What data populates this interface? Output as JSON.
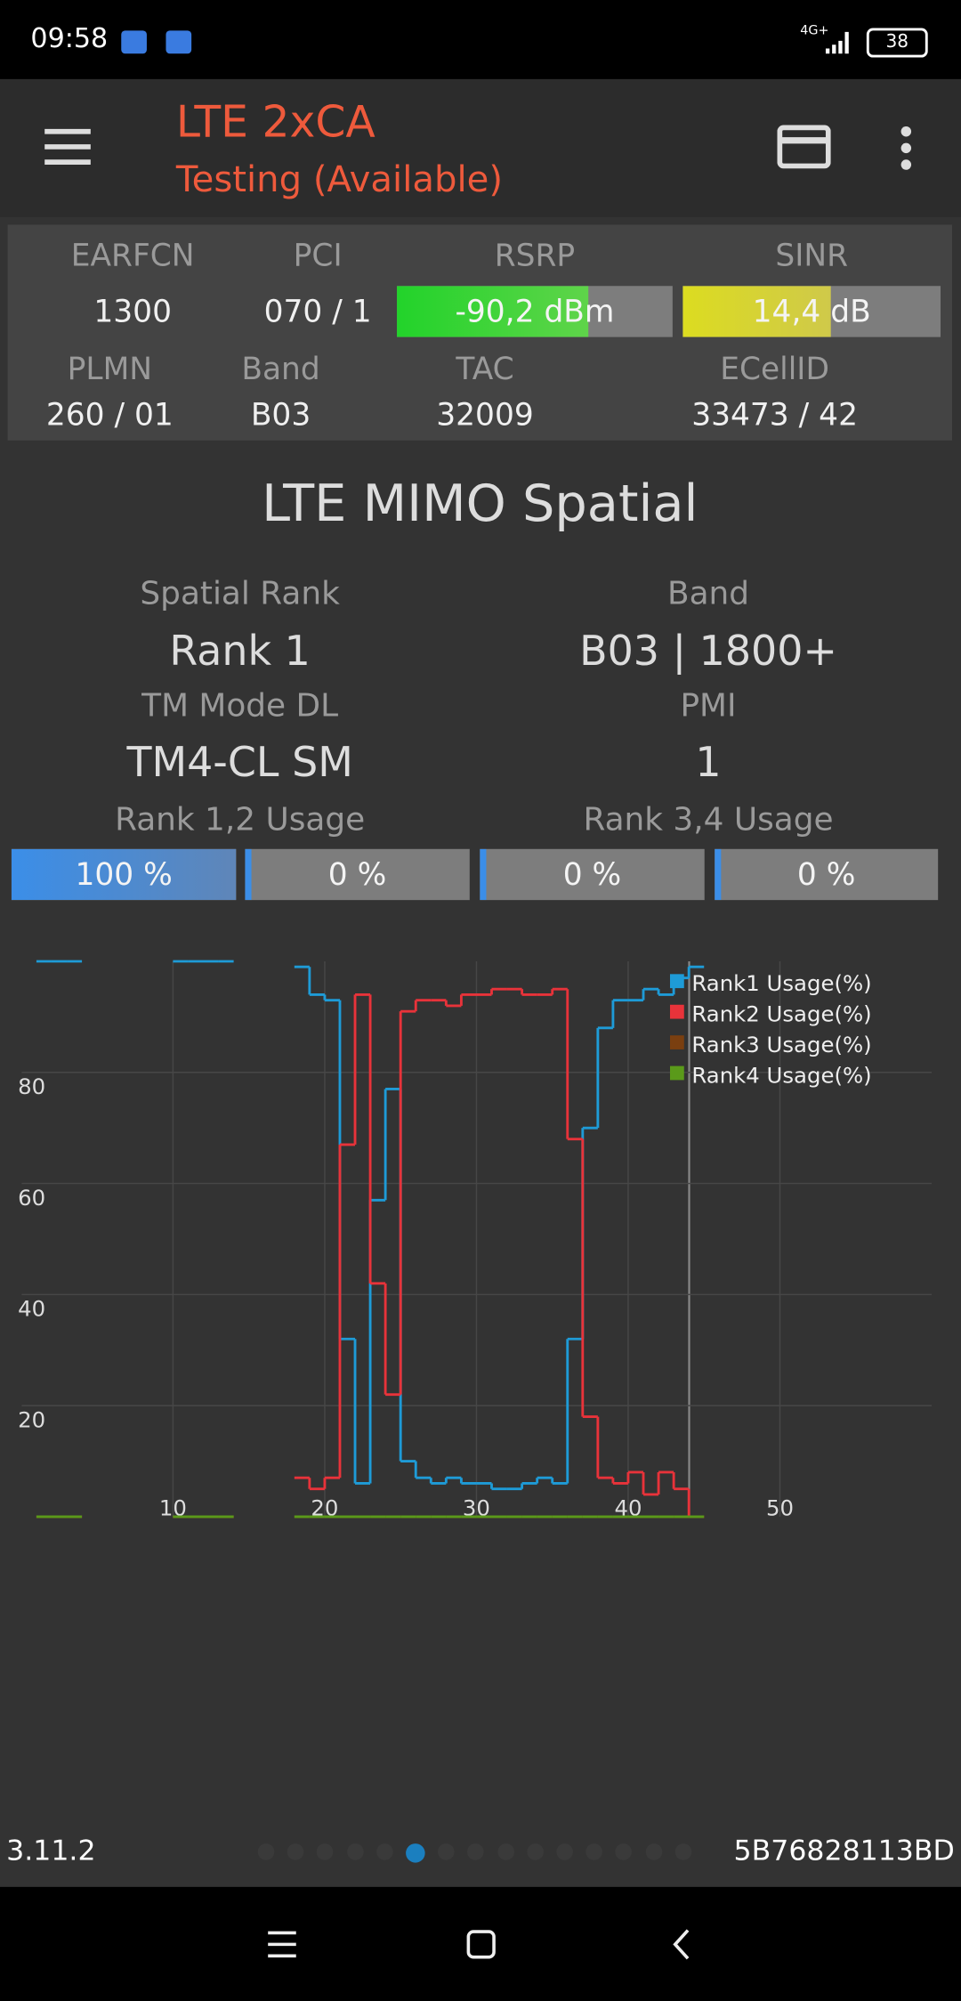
{
  "status_bar": {
    "time": "09:58",
    "network": "4G+",
    "battery": "38"
  },
  "toolbar": {
    "title": "LTE 2xCA",
    "subtitle": "Testing (Available)"
  },
  "cell_info": {
    "earfcn": {
      "label": "EARFCN",
      "value": "1300"
    },
    "pci": {
      "label": "PCI",
      "value": "070 / 1"
    },
    "rsrp": {
      "label": "RSRP",
      "value": "-90,2 dBm"
    },
    "sinr": {
      "label": "SINR",
      "value": "14,4 dB"
    },
    "plmn": {
      "label": "PLMN",
      "value": "260 / 01"
    },
    "band": {
      "label": "Band",
      "value": "B03"
    },
    "tac": {
      "label": "TAC",
      "value": "32009"
    },
    "ecellid": {
      "label": "ECellID",
      "value": "33473 / 42"
    }
  },
  "mimo": {
    "title": "LTE MIMO Spatial",
    "spatial_rank": {
      "label": "Spatial Rank",
      "value": "Rank 1"
    },
    "band": {
      "label": "Band",
      "value": "B03 | 1800+"
    },
    "tm_mode": {
      "label": "TM Mode DL",
      "value": "TM4-CL SM"
    },
    "pmi": {
      "label": "PMI",
      "value": "1"
    },
    "rank12_label": "Rank 1,2 Usage",
    "rank34_label": "Rank 3,4 Usage",
    "usage": [
      "100 %",
      "0 %",
      "0 %",
      "0 %"
    ]
  },
  "chart_data": {
    "type": "line",
    "step": true,
    "grid": true,
    "legend": "upper right",
    "x": [
      1,
      2,
      3,
      4,
      5,
      6,
      7,
      8,
      9,
      10,
      11,
      12,
      13,
      14,
      15,
      16,
      17,
      18,
      19,
      20,
      21,
      22,
      23,
      24,
      25,
      26,
      27,
      28,
      29,
      30,
      31,
      32,
      33,
      34,
      35,
      36,
      37,
      38,
      39,
      40,
      41,
      42,
      43,
      44
    ],
    "xlim": [
      -1.4,
      60
    ],
    "ylim": [
      0,
      100
    ],
    "xticks": [
      10,
      20,
      30,
      40,
      50
    ],
    "yticks": [
      20,
      40,
      60,
      80
    ],
    "series": [
      {
        "name": "Rank1 Usage(%)",
        "color": "#1e9bd7",
        "values": [
          100,
          100,
          100,
          null,
          null,
          null,
          null,
          null,
          null,
          100,
          100,
          100,
          100,
          null,
          null,
          null,
          null,
          99,
          94,
          93,
          32,
          6,
          57,
          77,
          10,
          7,
          6,
          7,
          6,
          6,
          5,
          5,
          6,
          7,
          6,
          32,
          70,
          88,
          93,
          93,
          95,
          94,
          97,
          99
        ]
      },
      {
        "name": "Rank2 Usage(%)",
        "color": "#e8333a",
        "values": [
          0,
          0,
          0,
          null,
          null,
          null,
          null,
          null,
          null,
          0,
          0,
          0,
          0,
          null,
          null,
          null,
          null,
          7,
          5,
          7,
          67,
          94,
          42,
          22,
          91,
          93,
          93,
          92,
          94,
          94,
          95,
          95,
          94,
          94,
          95,
          68,
          18,
          7,
          6,
          8,
          4,
          8,
          5,
          0
        ]
      },
      {
        "name": "Rank3 Usage(%)",
        "color": "#7a3f10",
        "values": [
          0,
          0,
          0,
          null,
          null,
          null,
          null,
          null,
          null,
          0,
          0,
          0,
          0,
          null,
          null,
          null,
          null,
          0,
          0,
          0,
          0,
          0,
          0,
          0,
          0,
          0,
          0,
          0,
          0,
          0,
          0,
          0,
          0,
          0,
          0,
          0,
          0,
          0,
          0,
          0,
          0,
          0,
          0,
          0
        ]
      },
      {
        "name": "Rank4 Usage(%)",
        "color": "#5a9a1a",
        "values": [
          0,
          0,
          0,
          null,
          null,
          null,
          null,
          null,
          null,
          0,
          0,
          0,
          0,
          null,
          null,
          null,
          null,
          0,
          0,
          0,
          0,
          0,
          0,
          0,
          0,
          0,
          0,
          0,
          0,
          0,
          0,
          0,
          0,
          0,
          0,
          0,
          0,
          0,
          0,
          0,
          0,
          0,
          0,
          0
        ]
      }
    ]
  },
  "footer": {
    "version": "3.11.2",
    "device_id": "5B76828113BD"
  }
}
